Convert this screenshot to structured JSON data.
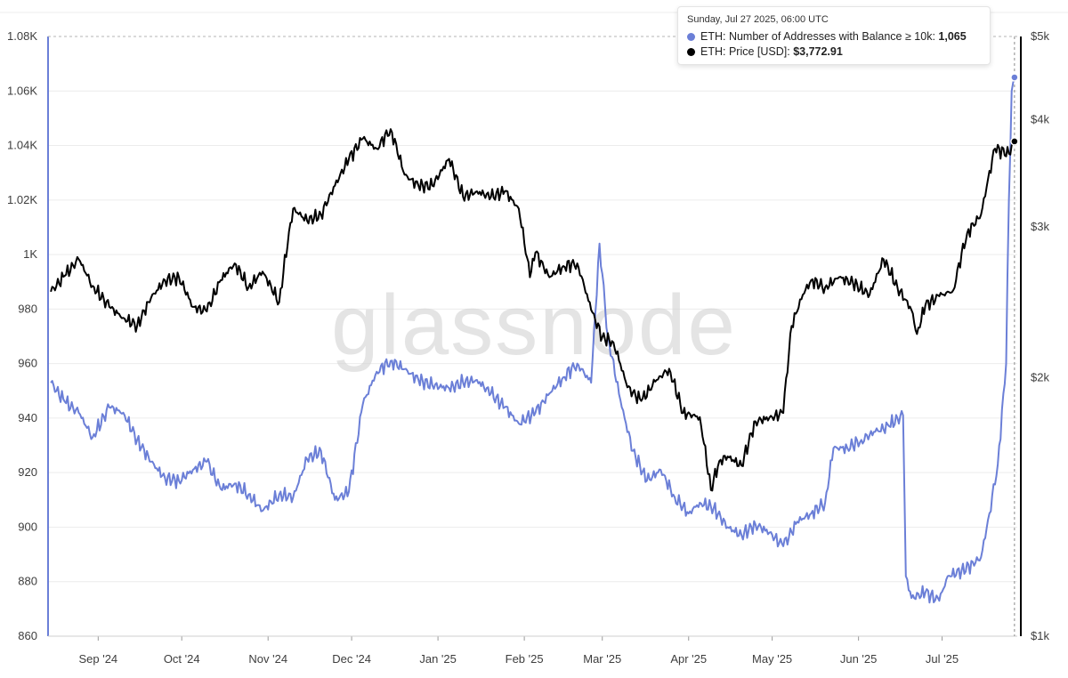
{
  "tooltip": {
    "date": "Sunday, Jul 27 2025, 06:00 UTC",
    "series1_label": "ETH: Number of Addresses with Balance ≥ 10k",
    "series1_value": "1,065",
    "series2_label": "ETH: Price [USD]",
    "series2_value": "$3,772.91"
  },
  "watermark": "glassnode",
  "colors": {
    "addresses": "#6b7fd7",
    "price": "#000000",
    "grid": "#ececec"
  },
  "chart_data": {
    "type": "line",
    "x_ticks": [
      "Sep '24",
      "Oct '24",
      "Nov '24",
      "Dec '24",
      "Jan '25",
      "Feb '25",
      "Mar '25",
      "Apr '25",
      "May '25",
      "Jun '25",
      "Jul '25"
    ],
    "y_left_ticks": [
      "860",
      "880",
      "900",
      "920",
      "940",
      "960",
      "980",
      "1K",
      "1.02K",
      "1.04K",
      "1.06K",
      "1.08K"
    ],
    "y_left_values": [
      860,
      880,
      900,
      920,
      940,
      960,
      980,
      1000,
      1020,
      1040,
      1060,
      1080
    ],
    "y_right_ticks": [
      "$1k",
      "$2k",
      "$3k",
      "$4k",
      "$5k"
    ],
    "y_right_values": [
      1000,
      2000,
      3000,
      4000,
      5000
    ],
    "y_right_scale": "log",
    "ylim_left": [
      860,
      1080
    ],
    "ylim_right": [
      1000,
      5000
    ],
    "grid": "horizontal",
    "series": [
      {
        "name": "ETH: Number of Addresses with Balance ≥ 10k",
        "axis": "left",
        "points": [
          [
            "2024-08-15",
            953
          ],
          [
            "2024-08-20",
            946
          ],
          [
            "2024-08-25",
            942
          ],
          [
            "2024-08-30",
            933
          ],
          [
            "2024-09-05",
            944
          ],
          [
            "2024-09-10",
            942
          ],
          [
            "2024-09-15",
            932
          ],
          [
            "2024-09-20",
            924
          ],
          [
            "2024-09-25",
            918
          ],
          [
            "2024-09-30",
            917
          ],
          [
            "2024-10-05",
            921
          ],
          [
            "2024-10-10",
            924
          ],
          [
            "2024-10-15",
            914
          ],
          [
            "2024-10-20",
            916
          ],
          [
            "2024-10-25",
            912
          ],
          [
            "2024-10-30",
            906
          ],
          [
            "2024-11-05",
            912
          ],
          [
            "2024-11-10",
            911
          ],
          [
            "2024-11-15",
            925
          ],
          [
            "2024-11-20",
            928
          ],
          [
            "2024-11-25",
            910
          ],
          [
            "2024-11-30",
            913
          ],
          [
            "2024-12-05",
            945
          ],
          [
            "2024-12-10",
            957
          ],
          [
            "2024-12-15",
            961
          ],
          [
            "2024-12-20",
            958
          ],
          [
            "2024-12-25",
            954
          ],
          [
            "2024-12-30",
            952
          ],
          [
            "2025-01-05",
            951
          ],
          [
            "2025-01-10",
            953
          ],
          [
            "2025-01-15",
            954
          ],
          [
            "2025-01-20",
            949
          ],
          [
            "2025-01-25",
            944
          ],
          [
            "2025-01-30",
            938
          ],
          [
            "2025-02-05",
            942
          ],
          [
            "2025-02-10",
            949
          ],
          [
            "2025-02-15",
            955
          ],
          [
            "2025-02-20",
            960
          ],
          [
            "2025-02-25",
            953
          ],
          [
            "2025-02-28",
            1004
          ],
          [
            "2025-03-03",
            970
          ],
          [
            "2025-03-08",
            944
          ],
          [
            "2025-03-12",
            928
          ],
          [
            "2025-03-17",
            917
          ],
          [
            "2025-03-22",
            921
          ],
          [
            "2025-03-27",
            911
          ],
          [
            "2025-04-01",
            905
          ],
          [
            "2025-04-05",
            909
          ],
          [
            "2025-04-10",
            907
          ],
          [
            "2025-04-15",
            900
          ],
          [
            "2025-04-20",
            897
          ],
          [
            "2025-04-25",
            901
          ],
          [
            "2025-04-30",
            898
          ],
          [
            "2025-05-05",
            893
          ],
          [
            "2025-05-10",
            902
          ],
          [
            "2025-05-15",
            905
          ],
          [
            "2025-05-20",
            909
          ],
          [
            "2025-05-23",
            929
          ],
          [
            "2025-05-28",
            929
          ],
          [
            "2025-06-02",
            932
          ],
          [
            "2025-06-07",
            935
          ],
          [
            "2025-06-12",
            937
          ],
          [
            "2025-06-15",
            940
          ],
          [
            "2025-06-17",
            941
          ],
          [
            "2025-06-18",
            882
          ],
          [
            "2025-06-20",
            874
          ],
          [
            "2025-06-25",
            876
          ],
          [
            "2025-06-30",
            873
          ],
          [
            "2025-07-03",
            882
          ],
          [
            "2025-07-08",
            884
          ],
          [
            "2025-07-13",
            887
          ],
          [
            "2025-07-15",
            889
          ],
          [
            "2025-07-18",
            905
          ],
          [
            "2025-07-21",
            923
          ],
          [
            "2025-07-24",
            960
          ],
          [
            "2025-07-25",
            1020
          ],
          [
            "2025-07-26",
            1060
          ],
          [
            "2025-07-27",
            1065
          ]
        ]
      },
      {
        "name": "ETH: Price [USD]",
        "axis": "right",
        "points": [
          [
            "2024-08-15",
            2520
          ],
          [
            "2024-08-20",
            2630
          ],
          [
            "2024-08-25",
            2750
          ],
          [
            "2024-08-30",
            2560
          ],
          [
            "2024-09-05",
            2420
          ],
          [
            "2024-09-10",
            2350
          ],
          [
            "2024-09-15",
            2300
          ],
          [
            "2024-09-20",
            2480
          ],
          [
            "2024-09-25",
            2600
          ],
          [
            "2024-09-30",
            2620
          ],
          [
            "2024-10-05",
            2420
          ],
          [
            "2024-10-10",
            2390
          ],
          [
            "2024-10-15",
            2600
          ],
          [
            "2024-10-20",
            2720
          ],
          [
            "2024-10-25",
            2550
          ],
          [
            "2024-10-30",
            2660
          ],
          [
            "2024-11-05",
            2450
          ],
          [
            "2024-11-10",
            3150
          ],
          [
            "2024-11-15",
            3050
          ],
          [
            "2024-11-20",
            3100
          ],
          [
            "2024-11-25",
            3350
          ],
          [
            "2024-11-30",
            3600
          ],
          [
            "2024-12-05",
            3800
          ],
          [
            "2024-12-10",
            3700
          ],
          [
            "2024-12-15",
            3900
          ],
          [
            "2024-12-20",
            3450
          ],
          [
            "2024-12-25",
            3350
          ],
          [
            "2024-12-30",
            3350
          ],
          [
            "2025-01-05",
            3600
          ],
          [
            "2025-01-10",
            3250
          ],
          [
            "2025-01-15",
            3300
          ],
          [
            "2025-01-20",
            3250
          ],
          [
            "2025-01-25",
            3300
          ],
          [
            "2025-01-30",
            3150
          ],
          [
            "2025-02-03",
            2620
          ],
          [
            "2025-02-05",
            2800
          ],
          [
            "2025-02-10",
            2620
          ],
          [
            "2025-02-15",
            2700
          ],
          [
            "2025-02-20",
            2720
          ],
          [
            "2025-02-25",
            2400
          ],
          [
            "2025-03-01",
            2230
          ],
          [
            "2025-03-05",
            2200
          ],
          [
            "2025-03-10",
            1950
          ],
          [
            "2025-03-15",
            1880
          ],
          [
            "2025-03-20",
            1980
          ],
          [
            "2025-03-25",
            2050
          ],
          [
            "2025-03-30",
            1820
          ],
          [
            "2025-04-05",
            1800
          ],
          [
            "2025-04-09",
            1480
          ],
          [
            "2025-04-12",
            1600
          ],
          [
            "2025-04-15",
            1620
          ],
          [
            "2025-04-20",
            1580
          ],
          [
            "2025-04-25",
            1780
          ],
          [
            "2025-05-01",
            1800
          ],
          [
            "2025-05-05",
            1820
          ],
          [
            "2025-05-08",
            2300
          ],
          [
            "2025-05-12",
            2500
          ],
          [
            "2025-05-15",
            2600
          ],
          [
            "2025-05-20",
            2550
          ],
          [
            "2025-05-25",
            2620
          ],
          [
            "2025-05-30",
            2580
          ],
          [
            "2025-06-05",
            2500
          ],
          [
            "2025-06-10",
            2750
          ],
          [
            "2025-06-15",
            2550
          ],
          [
            "2025-06-20",
            2400
          ],
          [
            "2025-06-22",
            2250
          ],
          [
            "2025-06-25",
            2430
          ],
          [
            "2025-06-30",
            2490
          ],
          [
            "2025-07-05",
            2530
          ],
          [
            "2025-07-10",
            2950
          ],
          [
            "2025-07-15",
            3100
          ],
          [
            "2025-07-20",
            3700
          ],
          [
            "2025-07-25",
            3650
          ],
          [
            "2025-07-27",
            3772.91
          ]
        ]
      }
    ]
  }
}
